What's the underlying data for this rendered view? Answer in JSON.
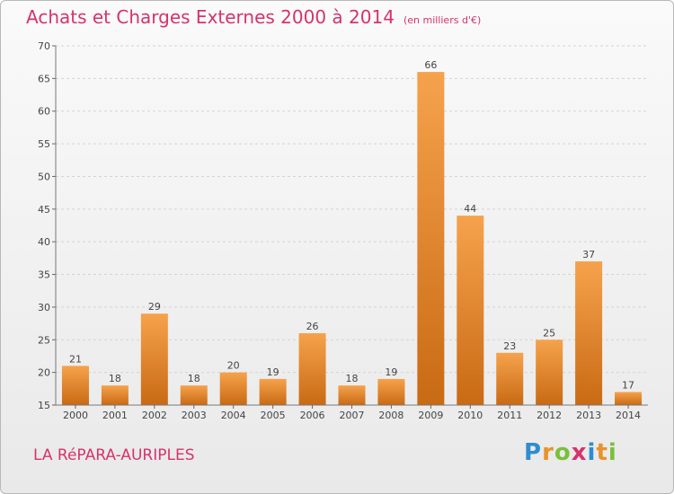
{
  "chart_data": {
    "type": "bar",
    "title": "Achats et Charges Externes 2000 à 2014",
    "subtitle": "(en milliers d'€)",
    "categories": [
      "2000",
      "2001",
      "2002",
      "2003",
      "2004",
      "2005",
      "2006",
      "2007",
      "2008",
      "2009",
      "2010",
      "2011",
      "2012",
      "2013",
      "2014"
    ],
    "values": [
      21,
      18,
      29,
      18,
      20,
      19,
      26,
      18,
      19,
      66,
      44,
      23,
      25,
      37,
      17
    ],
    "ylim": [
      15,
      70
    ],
    "yticks": [
      15,
      20,
      25,
      30,
      35,
      40,
      45,
      50,
      55,
      60,
      65,
      70
    ],
    "grid": true,
    "xlabel": "",
    "ylabel": ""
  },
  "place_name": "LA RéPARA-AURIPLES",
  "logo": {
    "letters": [
      "P",
      "r",
      "o",
      "x",
      "i",
      "t",
      "i"
    ],
    "colors": [
      "#2f8ccf",
      "#e8932a",
      "#7bbf3a",
      "#d6336c",
      "#2f8ccf",
      "#e8932a",
      "#7bbf3a"
    ]
  },
  "colors": {
    "bar_light": "#f6a24c",
    "bar_dark": "#c96a14",
    "accent": "#d6336c",
    "grid": "#d4d4d4",
    "axis_text": "#444444"
  }
}
